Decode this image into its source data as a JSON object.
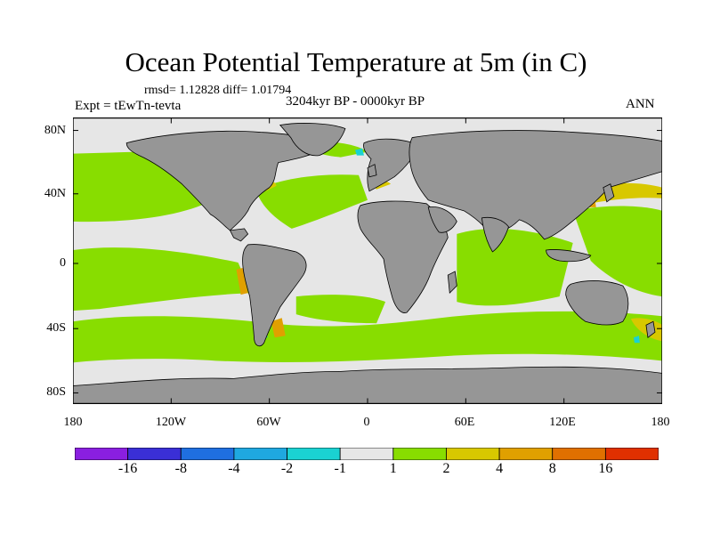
{
  "title": "Ocean Potential Temperature at 5m (in C)",
  "stats_line": "rmsd= 1.12828 diff= 1.01794",
  "experiment_label": "Expt = tEwTn-tevta",
  "period_label": "3204kyr BP - 0000kyr BP",
  "season_label": "ANN",
  "lat_labels": [
    "80N",
    "40N",
    "0",
    "40S",
    "80S"
  ],
  "lon_labels": [
    "180",
    "120W",
    "60W",
    "0",
    "60E",
    "120E",
    "180"
  ],
  "colorbar": {
    "colors": [
      "#8a1fe0",
      "#3a2fd6",
      "#1f6fe0",
      "#1fa8e0",
      "#1ad2d2",
      "#e6e6e6",
      "#88dd00",
      "#d8c800",
      "#e0a000",
      "#e07000",
      "#e03000"
    ],
    "labels": [
      "-16",
      "-8",
      "-4",
      "-2",
      "-1",
      "1",
      "2",
      "4",
      "8",
      "16"
    ]
  },
  "colors": {
    "land": "#969696",
    "no_change": "#e6e6e6",
    "warm_1_2": "#88dd00",
    "warm_2_4": "#d8c800",
    "warm_4_8": "#e0a000",
    "cool_1_2": "#1ad2d2"
  }
}
